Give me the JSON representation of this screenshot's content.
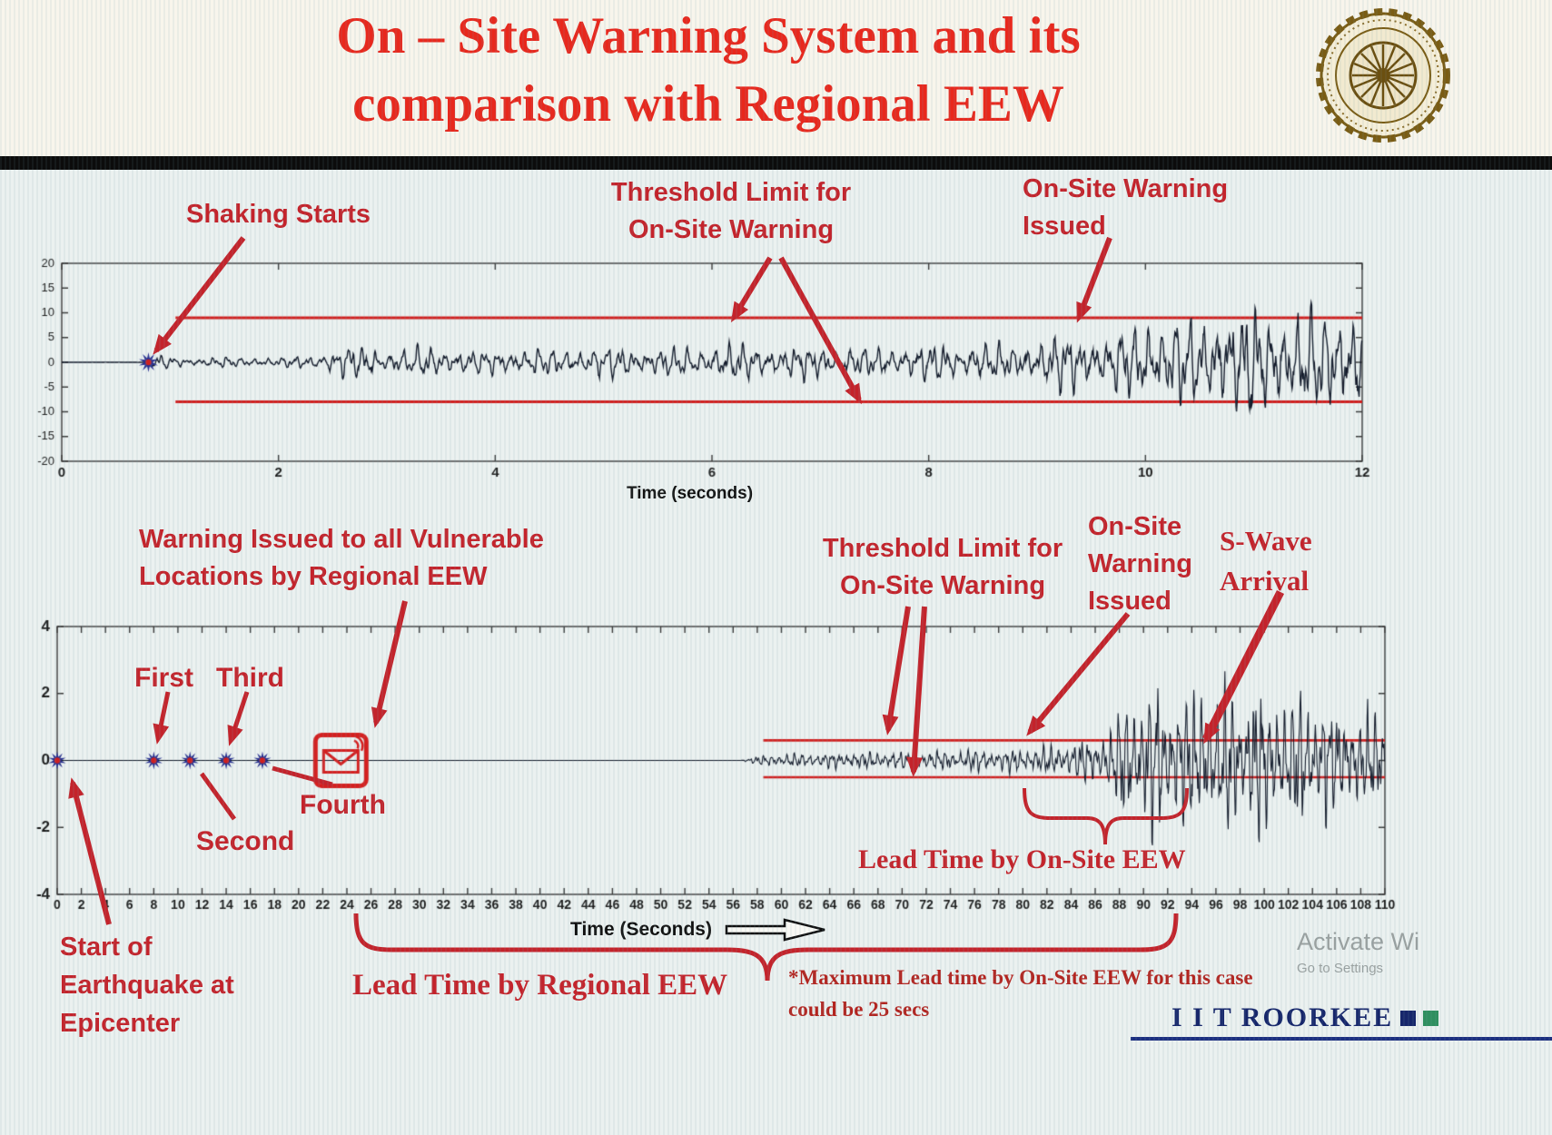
{
  "header": {
    "title_line1": "On – Site Warning System and its",
    "title_line2": "comparison with Regional EEW"
  },
  "colors": {
    "title_red": "#e8281d",
    "annotation_red": "#c4232b",
    "threshold_red": "#d01f1f",
    "waveform": "#141b2b",
    "footer_navy": "#16266b"
  },
  "annotations": {
    "shaking_starts": "Shaking Starts",
    "threshold_top_l1": "Threshold Limit for",
    "threshold_top_l2": "On-Site Warning",
    "onsite_top_l1": "On-Site Warning",
    "onsite_top_l2": "Issued",
    "warning_regional_l1": "Warning Issued to all Vulnerable",
    "warning_regional_l2": "Locations by Regional EEW",
    "threshold_bottom_l1": "Threshold Limit for",
    "threshold_bottom_l2": "On-Site Warning",
    "onsite_bottom_l1": "On-Site",
    "onsite_bottom_l2": "Warning",
    "onsite_bottom_l3": "Issued",
    "swave_l1": "S-Wave",
    "swave_l2": "Arrival",
    "first": "First",
    "second": "Second",
    "third": "Third",
    "fourth": "Fourth",
    "lead_onsite": "Lead Time by On-Site EEW",
    "lead_regional": "Lead Time by Regional EEW",
    "max_lead_l1": "*Maximum Lead time by On-Site EEW for this case",
    "max_lead_l2": "could be 25 secs",
    "start_eq_l1": "Start of",
    "start_eq_l2": "Earthquake at",
    "start_eq_l3": "Epicenter"
  },
  "footer": {
    "brand": "I I T ROORKEE"
  },
  "watermark": {
    "line1": "Activate Wi",
    "line2": "Go to Settings"
  },
  "chart_data": [
    {
      "type": "line",
      "id": "onsite-accelerogram",
      "xlabel": "Time (seconds)",
      "xlim": [
        0,
        12
      ],
      "ylim": [
        -20,
        20
      ],
      "xticks": [
        0,
        2,
        4,
        6,
        8,
        10,
        12
      ],
      "yticks": [
        20,
        15,
        10,
        5,
        0,
        -5,
        -10,
        -15,
        -20
      ],
      "grid": false,
      "threshold": {
        "upper": 9,
        "lower": -8,
        "x_start": 1.05,
        "x_end": 12,
        "label": "Threshold Limit for On-Site Warning"
      },
      "events": [
        {
          "label": "Shaking Starts",
          "t": 0.8
        },
        {
          "label": "On-Site Warning Issued",
          "t": 9.4
        }
      ],
      "star_markers": [
        0.8
      ],
      "waveform": {
        "color": "#141b2b",
        "freq": 8,
        "seed": 7,
        "envelope": [
          [
            0,
            0
          ],
          [
            0.78,
            0.05
          ],
          [
            0.85,
            1.8
          ],
          [
            1.2,
            1.0
          ],
          [
            1.6,
            1.3
          ],
          [
            2.0,
            1.1
          ],
          [
            2.35,
            1.7
          ],
          [
            2.6,
            4.2
          ],
          [
            3.0,
            3.0
          ],
          [
            3.4,
            3.6
          ],
          [
            3.8,
            2.8
          ],
          [
            4.2,
            3.4
          ],
          [
            4.6,
            3.0
          ],
          [
            5.0,
            3.8
          ],
          [
            5.4,
            3.2
          ],
          [
            5.8,
            3.8
          ],
          [
            6.2,
            4.4
          ],
          [
            6.6,
            3.6
          ],
          [
            7.0,
            4.2
          ],
          [
            7.4,
            3.4
          ],
          [
            7.8,
            4.0
          ],
          [
            8.2,
            4.6
          ],
          [
            8.6,
            4.2
          ],
          [
            9.0,
            5.2
          ],
          [
            9.3,
            7.5
          ],
          [
            9.6,
            6.0
          ],
          [
            9.9,
            9.5
          ],
          [
            10.2,
            12.5
          ],
          [
            10.5,
            9.0
          ],
          [
            10.8,
            15.5
          ],
          [
            11.1,
            11.0
          ],
          [
            11.4,
            14.0
          ],
          [
            11.7,
            11.5
          ],
          [
            12,
            14.5
          ]
        ]
      }
    },
    {
      "type": "line",
      "id": "regional-vs-onsite-timeline",
      "xlabel": "Time (Seconds)",
      "xlim": [
        0,
        110
      ],
      "ylim": [
        -4,
        4
      ],
      "xticks": [
        0,
        2,
        4,
        6,
        8,
        10,
        12,
        14,
        16,
        18,
        20,
        22,
        24,
        26,
        28,
        30,
        32,
        34,
        36,
        38,
        40,
        42,
        44,
        46,
        48,
        50,
        52,
        54,
        56,
        58,
        60,
        62,
        64,
        66,
        68,
        70,
        72,
        74,
        76,
        78,
        80,
        82,
        84,
        86,
        88,
        90,
        92,
        94,
        96,
        98,
        100,
        102,
        104,
        106,
        108,
        110
      ],
      "yticks": [
        4,
        2,
        0,
        -2,
        -4
      ],
      "grid": false,
      "threshold": {
        "upper": 0.6,
        "lower": -0.5,
        "x_start": 58.5,
        "x_end": 110,
        "label": "Threshold Limit for On-Site Warning"
      },
      "station_detections": [
        {
          "label": "Start of Earthquake at Epicenter",
          "t": 0
        },
        {
          "label": "First",
          "t": 8
        },
        {
          "label": "Second",
          "t": 11
        },
        {
          "label": "Third",
          "t": 14
        },
        {
          "label": "Fourth",
          "t": 17
        }
      ],
      "star_markers": [
        0,
        8,
        11,
        14,
        17
      ],
      "regional_warning_issued_t": 23.5,
      "onsite_warning_issued_t": 80,
      "s_wave_arrival_t": 93,
      "lead_time_regional_span": [
        24.8,
        92.7
      ],
      "lead_time_onsite_span": [
        80,
        93.5
      ],
      "waveform": {
        "color": "#141b2b",
        "freq": 1.6,
        "seed": 11,
        "envelope": [
          [
            0,
            0
          ],
          [
            56.5,
            0
          ],
          [
            57.5,
            0.1
          ],
          [
            58.5,
            0.2
          ],
          [
            60,
            0.24
          ],
          [
            63,
            0.27
          ],
          [
            66,
            0.3
          ],
          [
            70,
            0.33
          ],
          [
            74,
            0.37
          ],
          [
            78,
            0.42
          ],
          [
            81,
            0.48
          ],
          [
            83,
            0.6
          ],
          [
            85,
            0.75
          ],
          [
            87,
            1.1
          ],
          [
            88,
            1.8
          ],
          [
            89,
            2.9
          ],
          [
            90,
            2.2
          ],
          [
            91,
            3.2
          ],
          [
            92,
            2.1
          ],
          [
            93,
            2.7
          ],
          [
            94,
            2.3
          ],
          [
            95,
            3.1
          ],
          [
            96,
            2.1
          ],
          [
            97,
            2.9
          ],
          [
            98,
            2.4
          ],
          [
            99,
            3.0
          ],
          [
            100,
            2.3
          ],
          [
            101,
            2.7
          ],
          [
            102,
            2.2
          ],
          [
            103,
            2.5
          ],
          [
            104,
            1.9
          ],
          [
            105,
            2.3
          ],
          [
            106,
            1.7
          ],
          [
            107,
            2.1
          ],
          [
            108,
            1.6
          ],
          [
            109,
            1.9
          ],
          [
            110,
            1.5
          ]
        ]
      }
    }
  ]
}
